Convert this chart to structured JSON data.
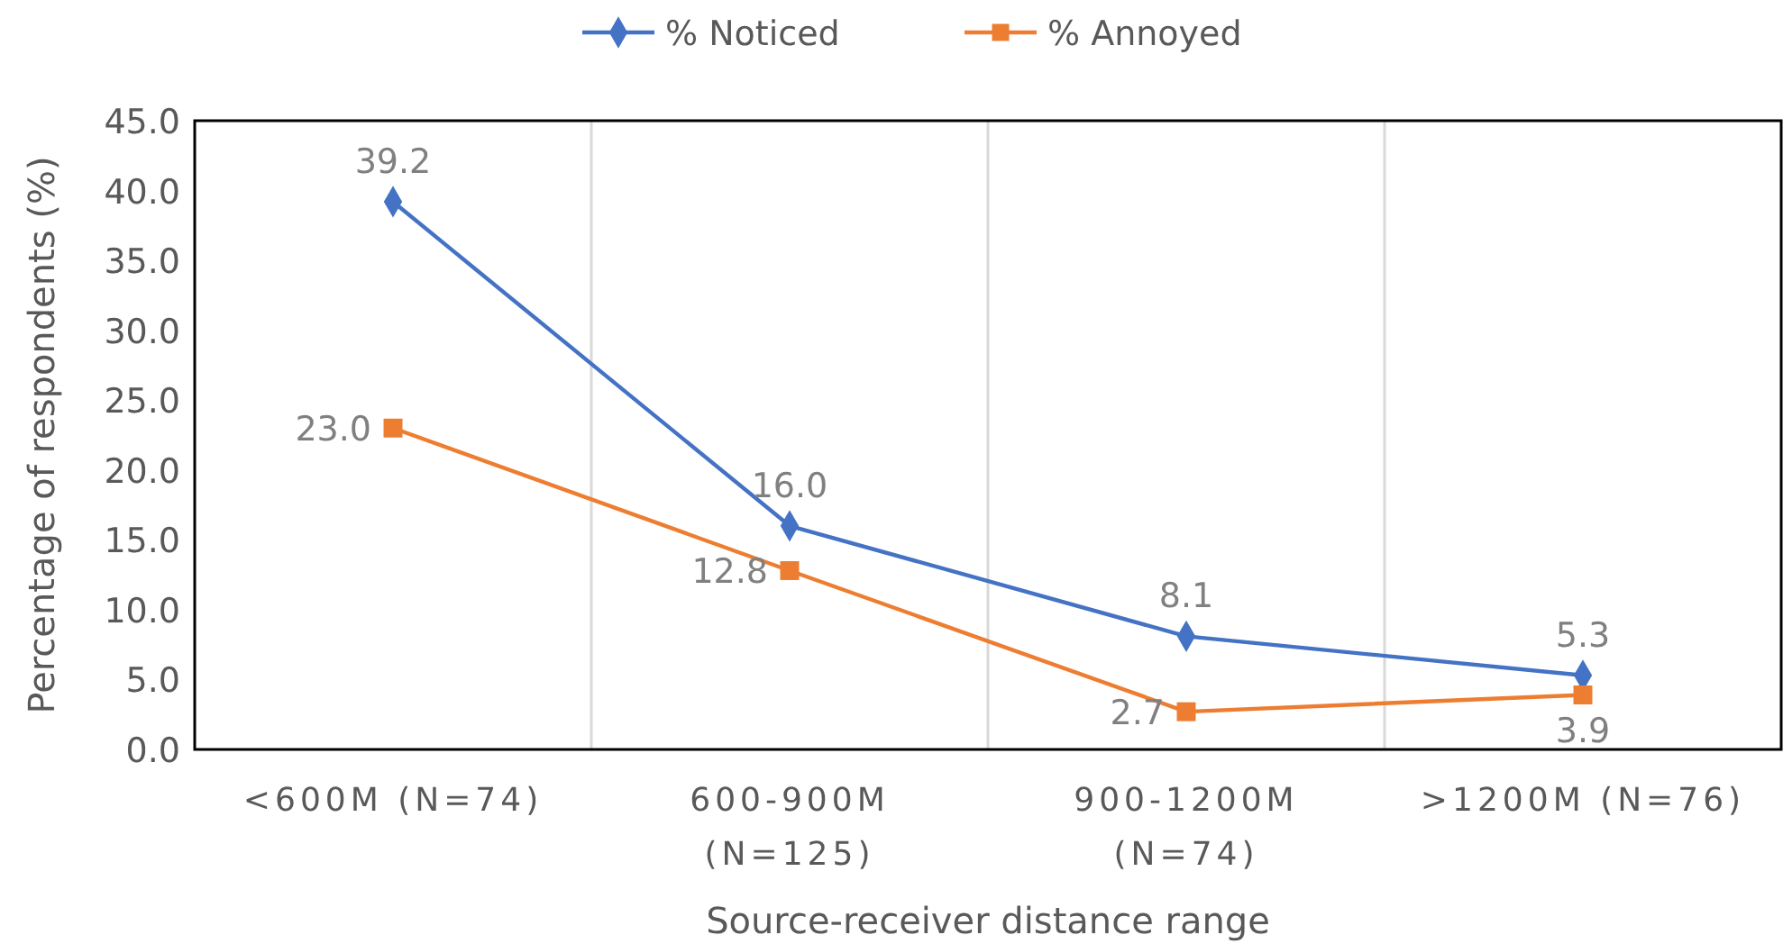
{
  "chart_data": {
    "type": "line",
    "xlabel": "Source-receiver distance range",
    "ylabel": "Percentage of respondents (%)",
    "categories": [
      "<600M (N=74)",
      "600-900M (N=125)",
      "900-1200M (N=74)",
      ">1200M (N=76)"
    ],
    "series": [
      {
        "name": "% Noticed",
        "color": "#4472c4",
        "marker": "diamond",
        "values": [
          39.2,
          16.0,
          8.1,
          5.3
        ],
        "value_labels": [
          "39.2",
          "16.0",
          "8.1",
          "5.3"
        ]
      },
      {
        "name": "% Annoyed",
        "color": "#ed7d31",
        "marker": "square",
        "values": [
          23.0,
          12.8,
          2.7,
          3.9
        ],
        "value_labels": [
          "23.0",
          "12.8",
          "2.7",
          "3.9"
        ]
      }
    ],
    "ylim": [
      0,
      45
    ],
    "yticks": [
      {
        "value": 0,
        "label": "0.0"
      },
      {
        "value": 5,
        "label": "5.0"
      },
      {
        "value": 10,
        "label": "10.0"
      },
      {
        "value": 15,
        "label": "15.0"
      },
      {
        "value": 20,
        "label": "20.0"
      },
      {
        "value": 25,
        "label": "25.0"
      },
      {
        "value": 30,
        "label": "30.0"
      },
      {
        "value": 35,
        "label": "35.0"
      },
      {
        "value": 40,
        "label": "40.0"
      },
      {
        "value": 45,
        "label": "45.0"
      }
    ],
    "grid": "x",
    "legend": "top",
    "line_style": "solid"
  }
}
